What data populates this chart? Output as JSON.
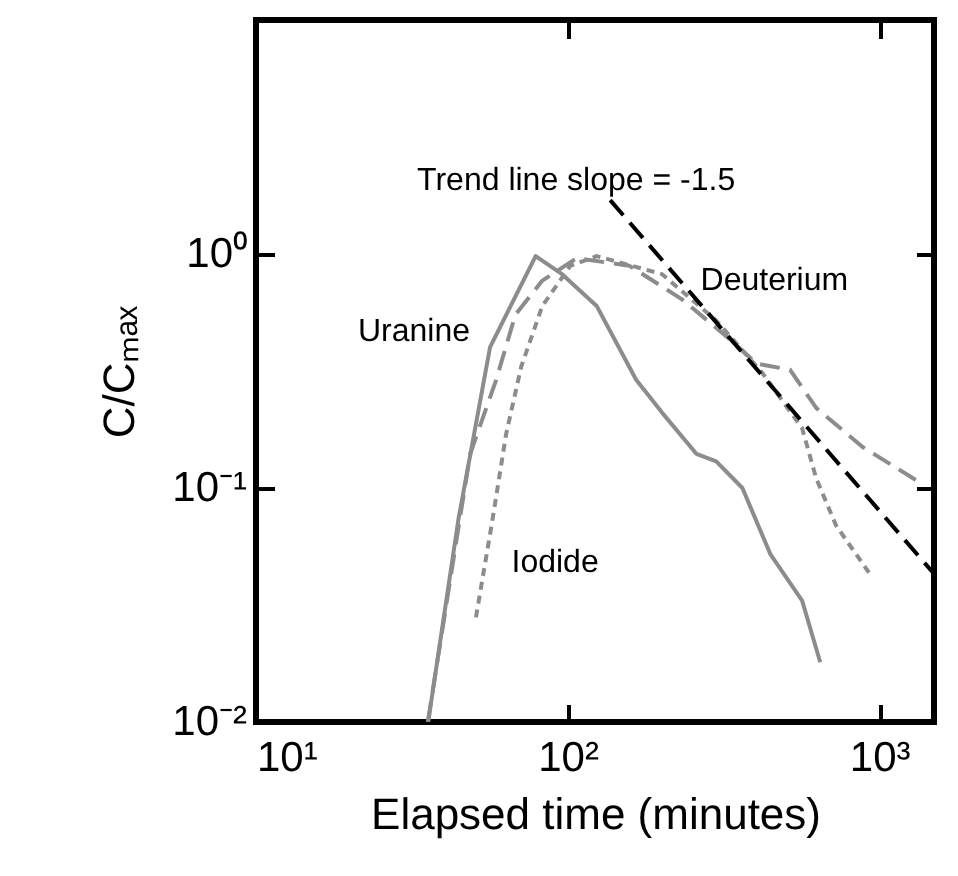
{
  "chart_data": {
    "type": "line",
    "xlabel": "Elapsed time (minutes)",
    "ylabel": "C/Cₘₐₓ",
    "log": "xy",
    "xlim": [
      10,
      1500
    ],
    "ylim": [
      0.01,
      10
    ],
    "xticks": [
      {
        "value": 10,
        "label": "10¹"
      },
      {
        "value": 100,
        "label": "10²"
      },
      {
        "value": 1000,
        "label": "10³"
      }
    ],
    "yticks": [
      {
        "value": 0.01,
        "label": "10⁻²"
      },
      {
        "value": 0.1,
        "label": "10⁻¹"
      },
      {
        "value": 1,
        "label": "10⁰"
      }
    ],
    "grid": false,
    "marker": "none",
    "series": [
      {
        "name": "Uranine",
        "color": "#8c8c8c",
        "line_style": "solid",
        "x": [
          35.7,
          44.6,
          56.4,
          79,
          96,
          124,
          166,
          201,
          259,
          300,
          364,
          448,
          566,
          647
        ],
        "values": [
          0.01,
          0.073,
          0.4,
          0.98,
          0.82,
          0.6,
          0.29,
          0.21,
          0.14,
          0.13,
          0.1,
          0.052,
          0.033,
          0.018
        ]
      },
      {
        "name": "Iodide",
        "color": "#8c8c8c",
        "line_style": "dotted",
        "x": [
          50.8,
          57,
          63.5,
          71,
          83,
          102,
          124,
          201,
          300,
          422,
          566,
          628,
          728,
          933
        ],
        "values": [
          0.028,
          0.069,
          0.17,
          0.33,
          0.6,
          0.89,
          0.98,
          0.82,
          0.52,
          0.31,
          0.18,
          0.11,
          0.069,
          0.043
        ]
      },
      {
        "name": "Deuterium",
        "color": "#8c8c8c",
        "line_style": "dashed",
        "x": [
          35.6,
          44,
          48.7,
          59,
          68,
          83,
          107,
          158,
          233,
          333,
          404,
          518,
          628,
          883,
          1315
        ],
        "values": [
          0.01,
          0.06,
          0.14,
          0.29,
          0.55,
          0.77,
          0.96,
          0.89,
          0.64,
          0.43,
          0.34,
          0.32,
          0.22,
          0.15,
          0.108
        ]
      },
      {
        "name": "Trend line slope = -1.5",
        "color": "#000000",
        "line_style": "dashed",
        "x": [
          137,
          1500
        ],
        "values": [
          1.7,
          0.043
        ]
      }
    ]
  }
}
